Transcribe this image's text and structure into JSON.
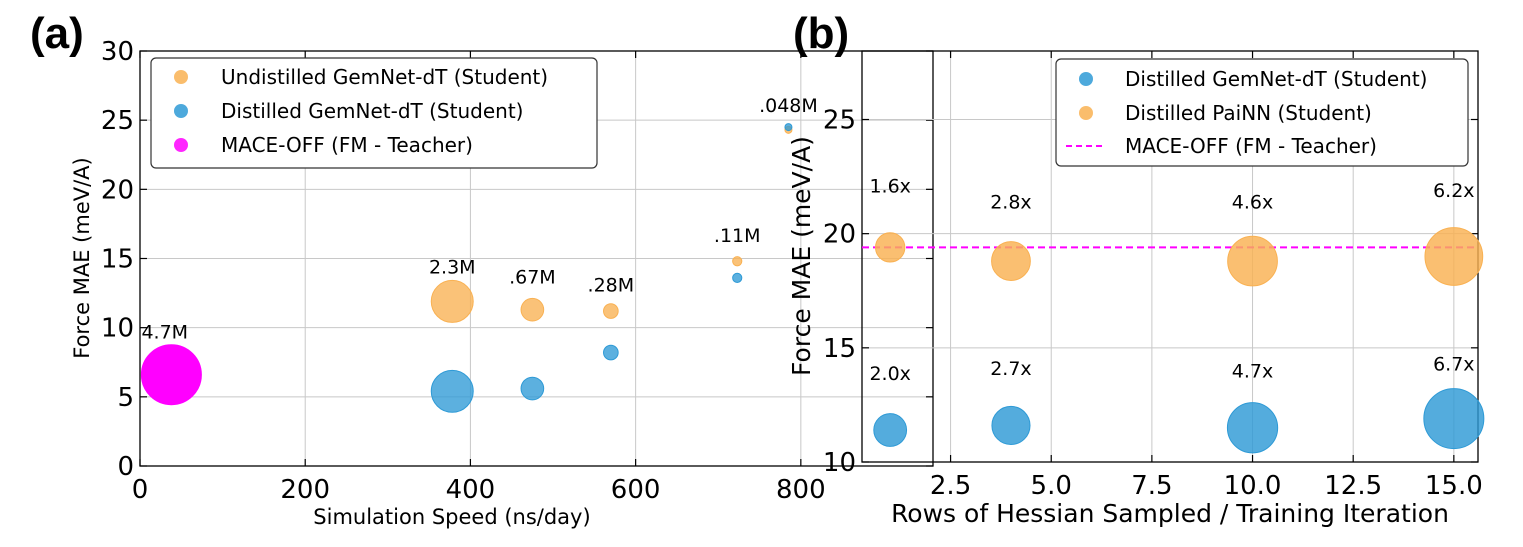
{
  "chart_data": [
    {
      "panel_label": "(a)",
      "type": "scatter",
      "xlabel": "Simulation Speed (ns/day)",
      "ylabel": "Force MAE (meV/A)",
      "xlim": [
        0,
        960
      ],
      "ylim": [
        0,
        30
      ],
      "xticks": [
        0,
        200,
        400,
        600,
        800
      ],
      "yticks": [
        0,
        5,
        10,
        15,
        20,
        25,
        30
      ],
      "xtick_labels": [
        "0",
        "200",
        "400",
        "600",
        "800"
      ],
      "ytick_labels": [
        "0",
        "5",
        "10",
        "15",
        "20",
        "25",
        "30"
      ],
      "grid": true,
      "legend_position": "top-left",
      "series": [
        {
          "name": "Undistilled GemNet-dT (Student)",
          "color": "#F9B152",
          "points": [
            {
              "x": 378,
              "y": 11.9,
              "size": 2.3
            },
            {
              "x": 475,
              "y": 11.3,
              "size": 0.67
            },
            {
              "x": 570,
              "y": 11.2,
              "size": 0.28
            },
            {
              "x": 723,
              "y": 14.8,
              "size": 0.11
            },
            {
              "x": 785,
              "y": 24.3,
              "size": 0.048
            }
          ]
        },
        {
          "name": "Distilled GemNet-dT (Student)",
          "color": "#2E9AD6",
          "points": [
            {
              "x": 378,
              "y": 5.4,
              "size": 2.3
            },
            {
              "x": 475,
              "y": 5.6,
              "size": 0.67
            },
            {
              "x": 570,
              "y": 8.2,
              "size": 0.28
            },
            {
              "x": 723,
              "y": 13.6,
              "size": 0.11
            },
            {
              "x": 785,
              "y": 24.5,
              "size": 0.048
            }
          ]
        },
        {
          "name": "MACE-OFF (FM - Teacher)",
          "color": "#FF00FF",
          "points": [
            {
              "x": 38,
              "y": 6.6,
              "size": 4.7
            }
          ]
        }
      ],
      "annotations": [
        {
          "text": "4.7M",
          "x": 30,
          "y": 9.2
        },
        {
          "text": "2.3M",
          "x": 378,
          "y": 13.9
        },
        {
          "text": ".67M",
          "x": 475,
          "y": 13.2
        },
        {
          "text": ".28M",
          "x": 570,
          "y": 12.6
        },
        {
          "text": ".11M",
          "x": 723,
          "y": 16.2
        },
        {
          "text": ".048M",
          "x": 785,
          "y": 25.6
        }
      ]
    },
    {
      "panel_label": "(b)",
      "type": "scatter",
      "xlabel": "Rows of Hessian Sampled / Training Iteration",
      "ylabel": "Force MAE (meV/A)",
      "xlim": [
        0.3,
        15.6
      ],
      "ylim": [
        10,
        28
      ],
      "xticks": [
        2.5,
        5.0,
        7.5,
        10.0,
        12.5,
        15.0
      ],
      "yticks": [
        10,
        15,
        20,
        25
      ],
      "xtick_labels": [
        "2.5",
        "5.0",
        "7.5",
        "10.0",
        "12.5",
        "15.0"
      ],
      "ytick_labels": [
        "10",
        "15",
        "20",
        "25"
      ],
      "grid": true,
      "legend_position": "top-right",
      "series": [
        {
          "name": "Distilled GemNet-dT (Student)",
          "color": "#2E9AD6",
          "points": [
            {
              "x": 1,
              "y": 11.4,
              "size": 2.0
            },
            {
              "x": 4,
              "y": 11.6,
              "size": 2.7
            },
            {
              "x": 10,
              "y": 11.5,
              "size": 4.7
            },
            {
              "x": 15,
              "y": 11.9,
              "size": 6.7
            }
          ]
        },
        {
          "name": "Distilled PaiNN (Student)",
          "color": "#F9B152",
          "points": [
            {
              "x": 1,
              "y": 19.4,
              "size": 1.6
            },
            {
              "x": 4,
              "y": 18.8,
              "size": 2.8
            },
            {
              "x": 10,
              "y": 18.8,
              "size": 4.6
            },
            {
              "x": 15,
              "y": 19.0,
              "size": 6.2
            }
          ]
        }
      ],
      "reference_line": {
        "name": "MACE-OFF (FM - Teacher)",
        "y": 19.4,
        "color": "#FF00FF",
        "style": "dashed"
      },
      "annotations": [
        {
          "text": "1.6x",
          "x": 1,
          "y": 21.8
        },
        {
          "text": "2.8x",
          "x": 4,
          "y": 21.1
        },
        {
          "text": "4.6x",
          "x": 10,
          "y": 21.1
        },
        {
          "text": "6.2x",
          "x": 15,
          "y": 21.6
        },
        {
          "text": "2.0x",
          "x": 1,
          "y": 13.6
        },
        {
          "text": "2.7x",
          "x": 4,
          "y": 13.8
        },
        {
          "text": "4.7x",
          "x": 10,
          "y": 13.7
        },
        {
          "text": "6.7x",
          "x": 15,
          "y": 14.0
        }
      ]
    }
  ]
}
